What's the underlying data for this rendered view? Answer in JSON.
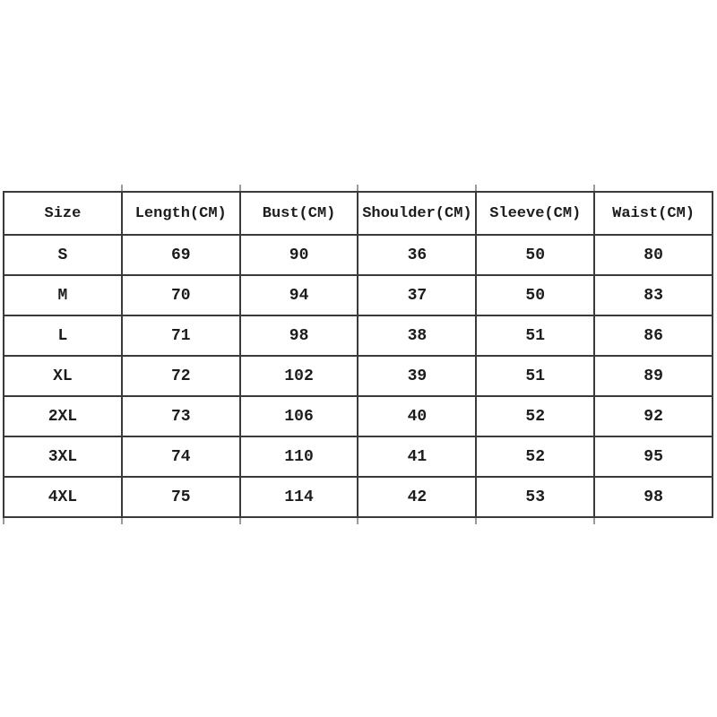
{
  "colors": {
    "background": "#ffffff",
    "border": "#3a3a3a",
    "text": "#1c1c1c"
  },
  "chart_data": {
    "type": "table",
    "columns": [
      "Size",
      "Length(CM)",
      "Bust(CM)",
      "Shoulder(CM)",
      "Sleeve(CM)",
      "Waist(CM)"
    ],
    "rows": [
      [
        "S",
        "69",
        "90",
        "36",
        "50",
        "80"
      ],
      [
        "M",
        "70",
        "94",
        "37",
        "50",
        "83"
      ],
      [
        "L",
        "71",
        "98",
        "38",
        "51",
        "86"
      ],
      [
        "XL",
        "72",
        "102",
        "39",
        "51",
        "89"
      ],
      [
        "2XL",
        "73",
        "106",
        "40",
        "52",
        "92"
      ],
      [
        "3XL",
        "74",
        "110",
        "41",
        "52",
        "95"
      ],
      [
        "4XL",
        "75",
        "114",
        "42",
        "53",
        "98"
      ]
    ]
  }
}
